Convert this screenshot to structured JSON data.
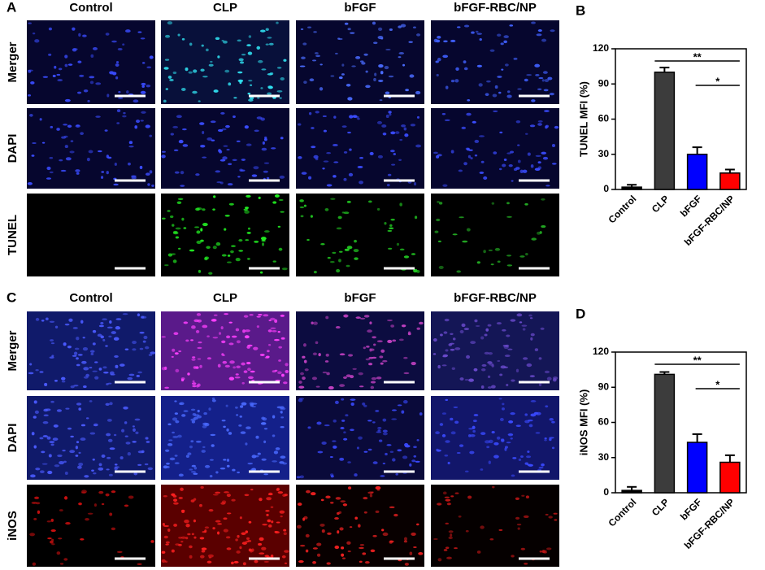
{
  "panel_labels": [
    "A",
    "B",
    "C",
    "D"
  ],
  "image_grids": [
    {
      "columns": [
        "Control",
        "CLP",
        "bFGF",
        "bFGF-RBC/NP"
      ],
      "rows": [
        "Merger",
        "DAPI",
        "TUNEL"
      ]
    },
    {
      "columns": [
        "Control",
        "CLP",
        "bFGF",
        "bFGF-RBC/NP"
      ],
      "rows": [
        "Merger",
        "DAPI",
        "iNOS"
      ]
    }
  ],
  "chart_data": [
    {
      "type": "bar",
      "ylabel": "TUNEL MFI (%)",
      "categories": [
        "Control",
        "CLP",
        "bFGF",
        "bFGF-RBC/NP"
      ],
      "values": [
        2,
        100,
        30,
        14
      ],
      "errors": [
        2,
        4,
        6,
        3
      ],
      "colors": [
        "#000000",
        "#3c3c3c",
        "#0000ff",
        "#ff0000"
      ],
      "ylim": [
        0,
        120
      ],
      "yticks": [
        0,
        30,
        60,
        90,
        120
      ],
      "annotations": [
        "**",
        "*"
      ]
    },
    {
      "type": "bar",
      "ylabel": "iNOS MFI (%)",
      "categories": [
        "Control",
        "CLP",
        "bFGF",
        "bFGF-RBC/NP"
      ],
      "values": [
        2,
        101,
        43,
        26
      ],
      "errors": [
        3,
        2,
        7,
        6
      ],
      "colors": [
        "#000000",
        "#3c3c3c",
        "#0000ff",
        "#ff0000"
      ],
      "ylim": [
        0,
        120
      ],
      "yticks": [
        0,
        30,
        60,
        90,
        120
      ],
      "annotations": [
        "**",
        "*"
      ]
    }
  ]
}
